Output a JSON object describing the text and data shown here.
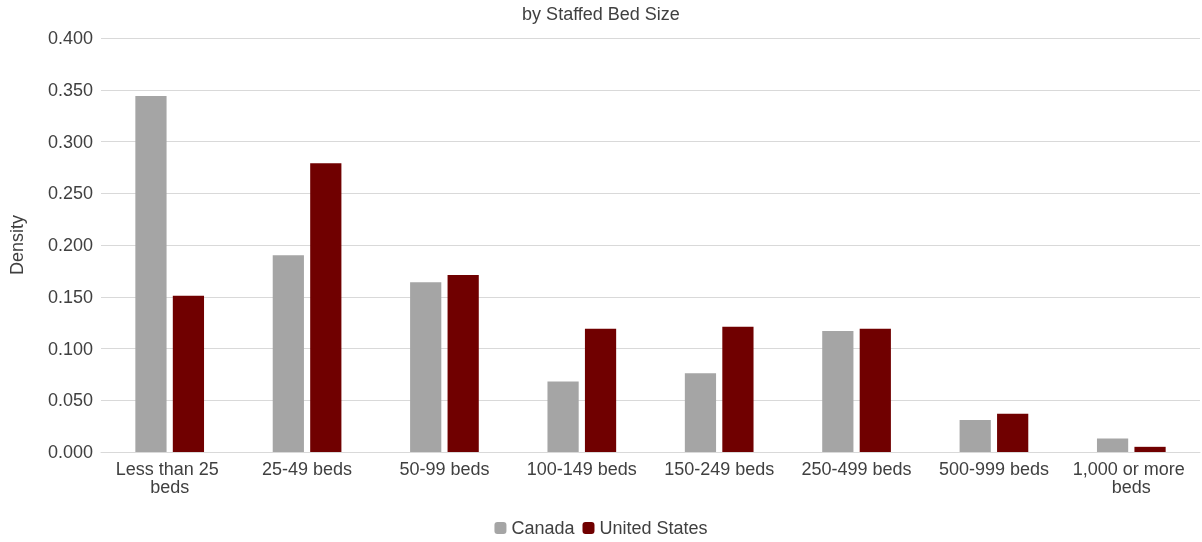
{
  "chart_data": {
    "type": "bar",
    "title": "by Staffed Bed Size",
    "ylabel": "Density",
    "categories": [
      "Less than 25 beds",
      "25-49 beds",
      "50-99 beds",
      "100-149 beds",
      "150-249 beds",
      "250-499 beds",
      "500-999 beds",
      "1,000 or more beds"
    ],
    "series": [
      {
        "name": "Canada",
        "color": "#a5a5a5",
        "values": [
          0.344,
          0.19,
          0.164,
          0.068,
          0.076,
          0.117,
          0.031,
          0.013
        ]
      },
      {
        "name": "United States",
        "color": "#700000",
        "values": [
          0.151,
          0.279,
          0.171,
          0.119,
          0.121,
          0.119,
          0.037,
          0.005
        ]
      }
    ],
    "ylim": [
      0,
      0.4
    ],
    "yticks": [
      {
        "value": 0,
        "label": "0.000"
      },
      {
        "value": 0.05,
        "label": "0.050"
      },
      {
        "value": 0.1,
        "label": "0.100"
      },
      {
        "value": 0.15,
        "label": "0.150"
      },
      {
        "value": 0.2,
        "label": "0.200"
      },
      {
        "value": 0.25,
        "label": "0.250"
      },
      {
        "value": 0.3,
        "label": "0.300"
      },
      {
        "value": 0.35,
        "label": "0.350"
      },
      {
        "value": 0.4,
        "label": "0.400"
      }
    ],
    "grid": "y",
    "legend": "bottom"
  }
}
